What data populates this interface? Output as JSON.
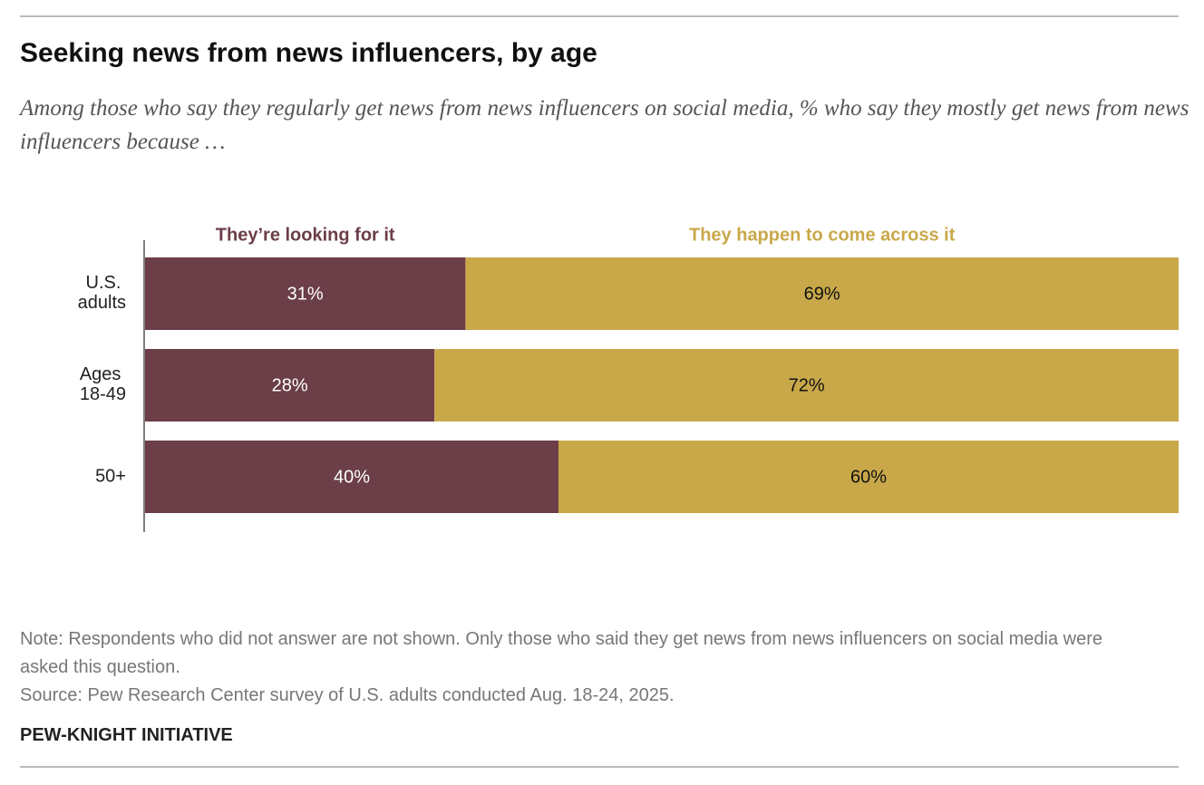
{
  "chart_data": {
    "type": "stacked_barh",
    "title": "Seeking news from news influencers, by age",
    "subtitle": "Among those who say they regularly get news from news influencers on social media, % who say they mostly get news from news influencers because …",
    "categories": [
      "U.S. adults",
      "Ages 18-49",
      "50+"
    ],
    "series": [
      {
        "name": "They’re looking for it",
        "color": "#6b3e48",
        "values": [
          31,
          28,
          40
        ],
        "value_labels": [
          "31%",
          "28%",
          "40%"
        ]
      },
      {
        "name": "They happen to come across it",
        "color": "#c9a84a",
        "values": [
          69,
          72,
          60
        ],
        "value_labels": [
          "69%",
          "72%",
          "60%"
        ]
      }
    ],
    "xlim": [
      0,
      100
    ],
    "note": "Note: Respondents who did not answer are not shown. Only those who said they get news from news influencers on social media were asked this question.",
    "source": "Source: Pew Research Center survey of U.S. adults conducted Aug. 18-24, 2025.",
    "credit": "PEW-KNIGHT INITIATIVE"
  }
}
